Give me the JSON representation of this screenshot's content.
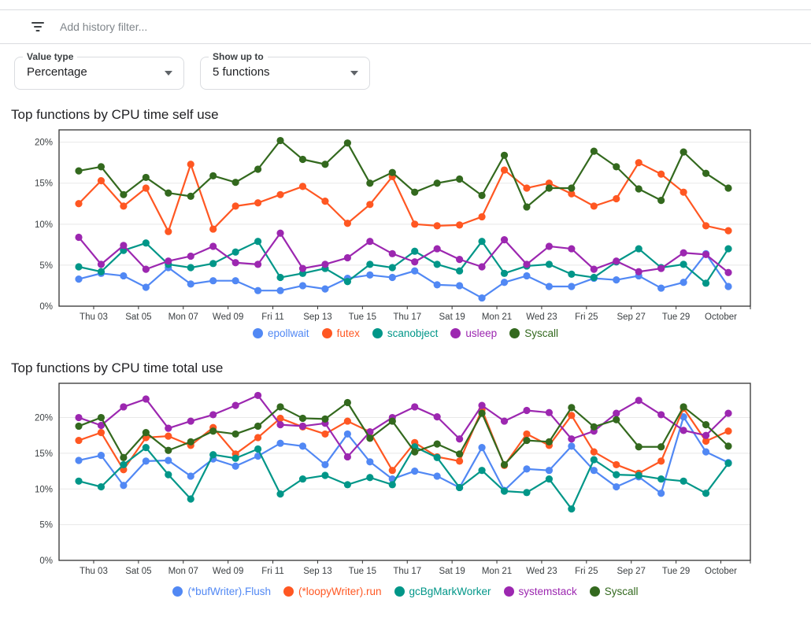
{
  "filter_bar": {
    "icon": "filter-list",
    "placeholder": "Add history filter..."
  },
  "controls": {
    "value_type": {
      "label": "Value type",
      "value": "Percentage"
    },
    "show_up_to": {
      "label": "Show up to",
      "value": "5 functions"
    }
  },
  "colors": {
    "blue": "#5188f4",
    "orange": "#ff5722",
    "teal": "#009688",
    "purple": "#9c27b0",
    "green": "#33691e",
    "grid": "#e8e8e8",
    "axis": "#333333",
    "tick_label": "#3c4043"
  },
  "chart_data": [
    {
      "type": "line",
      "title": "Top functions by CPU time self use",
      "ylabel": "",
      "y_tick_labels": [
        "0%",
        "5%",
        "10%",
        "15%",
        "20%"
      ],
      "y_tick_values": [
        0,
        5,
        10,
        15,
        20
      ],
      "ylim": [
        0,
        21.5
      ],
      "grid": "horizontal",
      "legend_position": "bottom",
      "n_points": 30,
      "x_tick_labels": [
        "Thu 03",
        "Sat 05",
        "Mon 07",
        "Wed 09",
        "Fri 11",
        "Sep 13",
        "Tue 15",
        "Thu 17",
        "Sat 19",
        "Mon 21",
        "Wed 23",
        "Fri 25",
        "Sep 27",
        "Tue 29",
        "October"
      ],
      "x_tick_indices": [
        1,
        3,
        5,
        7,
        9,
        11,
        13,
        15,
        17,
        19,
        21,
        23,
        25,
        27,
        29
      ],
      "series": [
        {
          "name": "epollwait",
          "color": "#5188f4",
          "values": [
            3.3,
            4.0,
            3.7,
            2.3,
            4.7,
            2.7,
            3.1,
            3.1,
            1.9,
            1.9,
            2.5,
            2.1,
            3.4,
            3.8,
            3.5,
            4.3,
            2.6,
            2.5,
            1.0,
            2.9,
            3.7,
            2.4,
            2.4,
            3.4,
            3.2,
            3.7,
            2.2,
            2.9,
            6.4,
            2.4
          ]
        },
        {
          "name": "futex",
          "color": "#ff5722",
          "values": [
            12.5,
            15.3,
            12.2,
            14.4,
            9.1,
            17.3,
            9.4,
            12.2,
            12.6,
            13.6,
            14.6,
            12.8,
            10.1,
            12.4,
            15.8,
            10.0,
            9.8,
            9.9,
            10.9,
            16.6,
            14.4,
            15.0,
            13.7,
            12.2,
            13.1,
            17.5,
            16.1,
            13.9,
            9.8,
            9.2
          ]
        },
        {
          "name": "scanobject",
          "color": "#009688",
          "values": [
            4.8,
            4.2,
            6.8,
            7.7,
            5.1,
            4.7,
            5.2,
            6.6,
            7.9,
            3.5,
            4.0,
            4.6,
            3.0,
            5.1,
            4.7,
            6.7,
            5.1,
            4.3,
            7.9,
            4.0,
            4.9,
            5.1,
            3.9,
            3.5,
            5.4,
            7.0,
            4.7,
            5.1,
            2.8,
            7.0
          ]
        },
        {
          "name": "usleep",
          "color": "#9c27b0",
          "values": [
            8.4,
            5.1,
            7.4,
            4.5,
            5.5,
            6.1,
            7.3,
            5.3,
            5.1,
            8.9,
            4.6,
            5.1,
            5.9,
            7.9,
            6.4,
            5.4,
            7.0,
            5.7,
            4.8,
            8.1,
            5.1,
            7.3,
            7.0,
            4.5,
            5.5,
            4.2,
            4.6,
            6.5,
            6.3,
            4.1
          ]
        },
        {
          "name": "Syscall",
          "color": "#33691e",
          "values": [
            16.5,
            17.0,
            13.6,
            15.7,
            13.8,
            13.4,
            15.9,
            15.1,
            16.7,
            20.2,
            17.9,
            17.3,
            19.9,
            15.0,
            16.3,
            13.9,
            15.0,
            15.5,
            13.5,
            18.4,
            12.1,
            14.4,
            14.4,
            18.9,
            17.0,
            14.3,
            12.9,
            18.8,
            16.2,
            14.4
          ]
        }
      ]
    },
    {
      "type": "line",
      "title": "Top functions by CPU time total use",
      "ylabel": "",
      "y_tick_labels": [
        "0%",
        "5%",
        "10%",
        "15%",
        "20%"
      ],
      "y_tick_values": [
        0,
        5,
        10,
        15,
        20
      ],
      "ylim": [
        0,
        24.8
      ],
      "grid": "horizontal",
      "legend_position": "bottom",
      "n_points": 30,
      "x_tick_labels": [
        "Thu 03",
        "Sat 05",
        "Mon 07",
        "Wed 09",
        "Fri 11",
        "Sep 13",
        "Tue 15",
        "Thu 17",
        "Sat 19",
        "Mon 21",
        "Wed 23",
        "Fri 25",
        "Sep 27",
        "Tue 29",
        "October"
      ],
      "x_tick_indices": [
        1,
        3,
        5,
        7,
        9,
        11,
        13,
        15,
        17,
        19,
        21,
        23,
        25,
        27,
        29
      ],
      "series": [
        {
          "name": "(*bufWriter).Flush",
          "color": "#5188f4",
          "values": [
            14.0,
            14.7,
            10.5,
            13.9,
            14.0,
            11.8,
            14.2,
            13.2,
            14.6,
            16.4,
            16.0,
            13.4,
            17.7,
            13.8,
            11.4,
            12.5,
            11.8,
            10.2,
            15.8,
            9.8,
            12.8,
            12.6,
            16.0,
            12.6,
            10.3,
            11.7,
            9.4,
            20.1,
            15.2,
            13.7
          ]
        },
        {
          "name": "(*loopyWriter).run",
          "color": "#ff5722",
          "values": [
            16.8,
            17.9,
            12.7,
            17.2,
            17.4,
            16.1,
            18.6,
            14.9,
            17.2,
            19.9,
            18.7,
            17.7,
            19.5,
            18.0,
            12.6,
            16.5,
            14.5,
            13.9,
            21.1,
            13.3,
            17.7,
            16.1,
            20.3,
            15.2,
            13.4,
            12.2,
            13.9,
            21.3,
            16.7,
            18.1
          ]
        },
        {
          "name": "gcBgMarkWorker",
          "color": "#009688",
          "values": [
            11.1,
            10.3,
            13.4,
            15.8,
            12.0,
            8.6,
            14.8,
            14.3,
            15.6,
            9.3,
            11.4,
            11.9,
            10.6,
            11.6,
            10.6,
            15.9,
            14.4,
            10.2,
            12.6,
            9.7,
            9.5,
            11.4,
            7.2,
            14.1,
            12.0,
            11.9,
            11.4,
            11.1,
            9.4,
            13.6
          ]
        },
        {
          "name": "systemstack",
          "color": "#9c27b0",
          "values": [
            20.0,
            18.9,
            21.5,
            22.6,
            18.5,
            19.5,
            20.4,
            21.7,
            23.1,
            19.0,
            18.8,
            19.2,
            14.5,
            18.0,
            20.0,
            21.5,
            20.1,
            17.0,
            21.7,
            19.5,
            21.0,
            20.7,
            17.0,
            18.1,
            20.6,
            22.4,
            20.4,
            18.2,
            17.5,
            20.6
          ]
        },
        {
          "name": "Syscall",
          "color": "#33691e",
          "values": [
            18.8,
            20.0,
            14.4,
            17.9,
            15.4,
            16.6,
            18.1,
            17.7,
            18.8,
            21.5,
            19.9,
            19.8,
            22.1,
            17.1,
            19.5,
            15.2,
            16.3,
            14.9,
            20.6,
            13.4,
            16.8,
            16.6,
            21.4,
            18.7,
            19.7,
            15.9,
            15.9,
            21.5,
            19.0,
            16.0
          ]
        }
      ]
    }
  ]
}
